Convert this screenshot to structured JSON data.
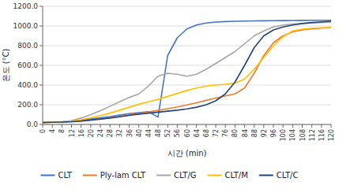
{
  "chart_data": {
    "type": "line",
    "xlabel": "시간 (min)",
    "ylabel": "온도 (°C)",
    "x": [
      0,
      4,
      8,
      12,
      16,
      20,
      24,
      28,
      32,
      36,
      40,
      44,
      48,
      52,
      56,
      60,
      64,
      68,
      72,
      76,
      80,
      84,
      88,
      92,
      96,
      100,
      104,
      108,
      112,
      116,
      120
    ],
    "xlim": [
      0,
      120
    ],
    "ylim": [
      0,
      1200
    ],
    "xticks": [
      0,
      4,
      8,
      12,
      16,
      20,
      24,
      28,
      32,
      36,
      40,
      44,
      48,
      52,
      56,
      60,
      64,
      68,
      72,
      76,
      80,
      84,
      88,
      92,
      96,
      100,
      104,
      108,
      112,
      116,
      120
    ],
    "yticks": [
      {
        "value": 0,
        "label": "0.0"
      },
      {
        "value": 200,
        "label": "200.0"
      },
      {
        "value": 400,
        "label": "400.0"
      },
      {
        "value": 600,
        "label": "600.0"
      },
      {
        "value": 800,
        "label": "800.0"
      },
      {
        "value": 1000,
        "label": "1000.0"
      },
      {
        "value": 1200,
        "label": "1200.0"
      }
    ],
    "grid": true,
    "legend": "bottom",
    "series": [
      {
        "name": "CLT",
        "color": "#4472C4",
        "values": [
          20,
          22,
          25,
          32,
          42,
          55,
          68,
          80,
          95,
          110,
          120,
          130,
          75,
          700,
          880,
          970,
          1010,
          1030,
          1040,
          1045,
          1048,
          1050,
          1052,
          1053,
          1054,
          1055,
          1056,
          1057,
          1058,
          1058,
          1058
        ]
      },
      {
        "name": "Ply-lam CLT",
        "color": "#ED7D31",
        "values": [
          20,
          22,
          24,
          28,
          35,
          45,
          55,
          68,
          82,
          98,
          112,
          128,
          143,
          160,
          178,
          198,
          220,
          245,
          268,
          290,
          310,
          370,
          520,
          700,
          830,
          900,
          940,
          960,
          970,
          978,
          985
        ]
      },
      {
        "name": "CLT/G",
        "color": "#A5A5A5",
        "values": [
          20,
          22,
          28,
          40,
          65,
          100,
          140,
          185,
          230,
          275,
          310,
          390,
          490,
          520,
          510,
          490,
          510,
          560,
          620,
          680,
          740,
          820,
          900,
          950,
          990,
          1010,
          1020,
          1025,
          1030,
          1035,
          1040
        ]
      },
      {
        "name": "CLT/M",
        "color": "#FFC000",
        "values": [
          20,
          22,
          26,
          34,
          48,
          68,
          90,
          115,
          145,
          175,
          205,
          230,
          255,
          285,
          315,
          345,
          370,
          390,
          400,
          408,
          420,
          460,
          560,
          680,
          800,
          890,
          950,
          968,
          978,
          982,
          986
        ]
      },
      {
        "name": "CLT/C",
        "color": "#264478",
        "values": [
          20,
          22,
          24,
          28,
          35,
          45,
          55,
          65,
          78,
          92,
          105,
          115,
          125,
          135,
          145,
          158,
          175,
          200,
          240,
          310,
          430,
          600,
          780,
          900,
          960,
          990,
          1010,
          1025,
          1035,
          1042,
          1048
        ]
      }
    ]
  }
}
